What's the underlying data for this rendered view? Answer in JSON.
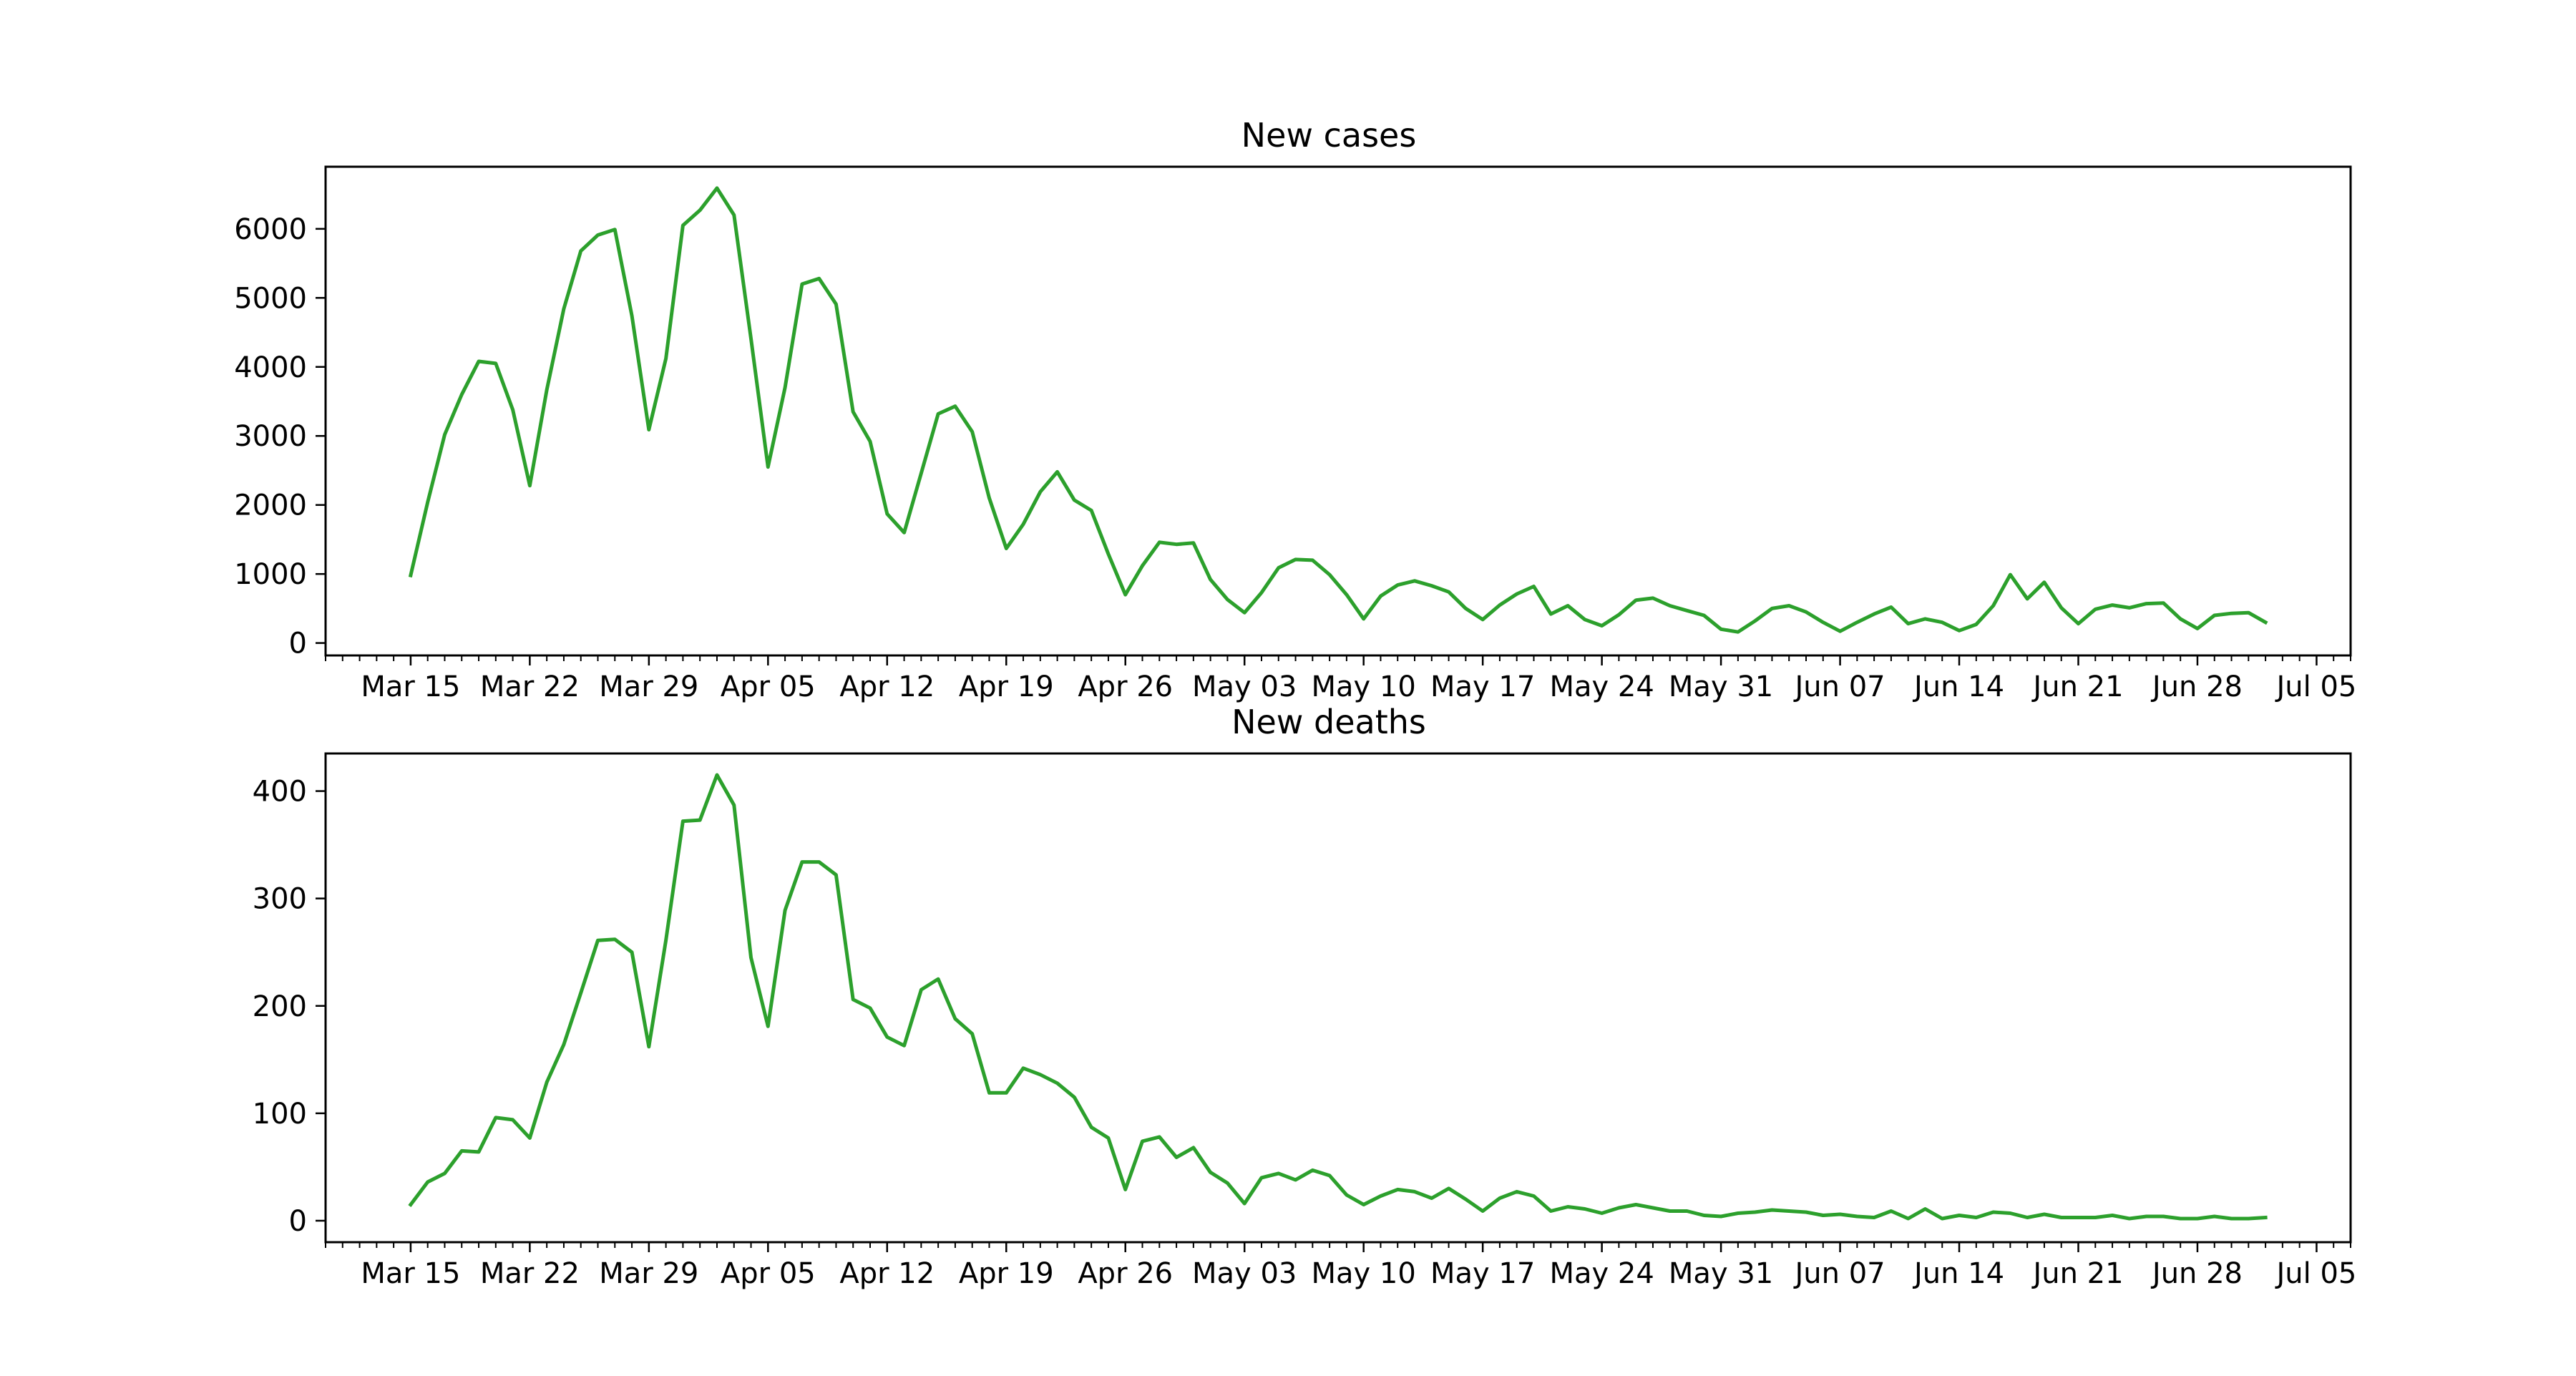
{
  "chart_data": [
    {
      "type": "line",
      "title": "New cases",
      "xlabel": "",
      "ylabel": "",
      "x_start": "Mar 15",
      "x_end": "Jul 02",
      "xlim": [
        "Mar 10",
        "Jul 07"
      ],
      "ylim": [
        -180,
        6900
      ],
      "grid": false,
      "color": "#2ca02c",
      "x_tick_labels": [
        "Mar 15",
        "Mar 22",
        "Mar 29",
        "Apr 05",
        "Apr 12",
        "Apr 19",
        "Apr 26",
        "May 03",
        "May 10",
        "May 17",
        "May 24",
        "May 31",
        "Jun 07",
        "Jun 14",
        "Jun 21",
        "Jun 28",
        "Jul 05"
      ],
      "y_ticks": [
        0,
        1000,
        2000,
        3000,
        4000,
        5000,
        6000
      ],
      "y_tick_labels": [
        "0",
        "1000",
        "2000",
        "3000",
        "4000",
        "5000",
        "6000"
      ],
      "values": [
        980,
        2040,
        3020,
        3600,
        4080,
        4050,
        3380,
        2280,
        3670,
        4840,
        5680,
        5910,
        5990,
        4740,
        3090,
        4120,
        6050,
        6270,
        6590,
        6200,
        4410,
        2550,
        3700,
        5200,
        5280,
        4910,
        3350,
        2920,
        1870,
        1600,
        2460,
        3320,
        3430,
        3060,
        2100,
        1370,
        1720,
        2190,
        2480,
        2070,
        1920,
        1290,
        700,
        1120,
        1460,
        1430,
        1450,
        920,
        630,
        440,
        730,
        1090,
        1210,
        1200,
        990,
        700,
        350,
        680,
        840,
        900,
        830,
        740,
        500,
        340,
        550,
        710,
        820,
        420,
        540,
        340,
        250,
        410,
        620,
        650,
        540,
        470,
        400,
        200,
        160,
        320,
        500,
        540,
        450,
        300,
        170,
        300,
        420,
        520,
        280,
        350,
        300,
        180,
        270,
        540,
        990,
        640,
        880,
        510,
        280,
        490,
        550,
        510,
        570,
        580,
        350,
        210,
        400,
        430,
        440,
        300
      ]
    },
    {
      "type": "line",
      "title": "New deaths",
      "xlabel": "",
      "ylabel": "",
      "x_start": "Mar 15",
      "x_end": "Jul 02",
      "xlim": [
        "Mar 10",
        "Jul 07"
      ],
      "ylim": [
        -20,
        435
      ],
      "grid": false,
      "color": "#2ca02c",
      "x_tick_labels": [
        "Mar 15",
        "Mar 22",
        "Mar 29",
        "Apr 05",
        "Apr 12",
        "Apr 19",
        "Apr 26",
        "May 03",
        "May 10",
        "May 17",
        "May 24",
        "May 31",
        "Jun 07",
        "Jun 14",
        "Jun 21",
        "Jun 28",
        "Jul 05"
      ],
      "y_ticks": [
        0,
        100,
        200,
        300,
        400
      ],
      "y_tick_labels": [
        "0",
        "100",
        "200",
        "300",
        "400"
      ],
      "values": [
        15,
        36,
        44,
        65,
        64,
        96,
        94,
        77,
        129,
        164,
        212,
        261,
        262,
        250,
        162,
        261,
        372,
        373,
        415,
        387,
        245,
        181,
        289,
        334,
        334,
        322,
        206,
        198,
        171,
        163,
        215,
        225,
        188,
        174,
        119,
        119,
        142,
        136,
        128,
        115,
        87,
        77,
        29,
        74,
        78,
        59,
        68,
        45,
        35,
        16,
        40,
        44,
        38,
        47,
        42,
        24,
        15,
        23,
        29,
        27,
        21,
        30,
        20,
        9,
        21,
        27,
        23,
        9,
        13,
        11,
        7,
        12,
        15,
        12,
        9,
        9,
        5,
        4,
        7,
        8,
        10,
        9,
        8,
        5,
        6,
        4,
        3,
        9,
        2,
        11,
        2,
        5,
        3,
        8,
        7,
        3,
        6,
        3,
        3,
        3,
        5,
        2,
        4,
        4,
        2,
        2,
        4,
        2,
        2,
        3
      ]
    }
  ]
}
